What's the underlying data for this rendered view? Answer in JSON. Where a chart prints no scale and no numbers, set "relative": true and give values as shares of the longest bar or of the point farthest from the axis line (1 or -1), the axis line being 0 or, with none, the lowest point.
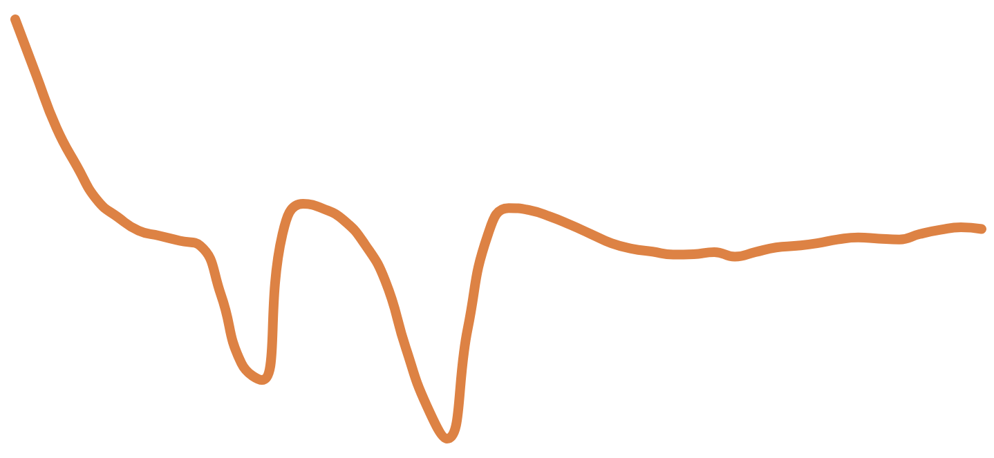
{
  "chart_data": {
    "type": "line",
    "relative": true,
    "categories": [
      null,
      null,
      null,
      null,
      null,
      null,
      null,
      null,
      null,
      null,
      null,
      null,
      null,
      null,
      null,
      null,
      null,
      null,
      null,
      null,
      null,
      null,
      null,
      null,
      null,
      null,
      null,
      null,
      null,
      null,
      null,
      null,
      null,
      null,
      null,
      null,
      null,
      null,
      null,
      null,
      null,
      null,
      null,
      null,
      null,
      null,
      null,
      null
    ],
    "series": [
      {
        "color": "#dd8244",
        "values": [
          1.0,
          0.87,
          0.742,
          0.65,
          0.568,
          0.528,
          0.496,
          0.484,
          0.472,
          0.46,
          0.344,
          0.18,
          0.14,
          0.488,
          0.56,
          0.548,
          0.52,
          0.464,
          0.376,
          0.216,
          0.08,
          0,
          0.26,
          0.488,
          0.55,
          0.545,
          0.53,
          0.51,
          0.488,
          0.466,
          0.453,
          0.446,
          0.439,
          0.44,
          0.445,
          0.434,
          0.445,
          0.456,
          0.46,
          0.466,
          0.475,
          0.48,
          0.477,
          0.475,
          0.488,
          0.498,
          0.504,
          0.5
        ]
      }
    ],
    "grid": false,
    "marker": "none",
    "line_style": "solid"
  }
}
